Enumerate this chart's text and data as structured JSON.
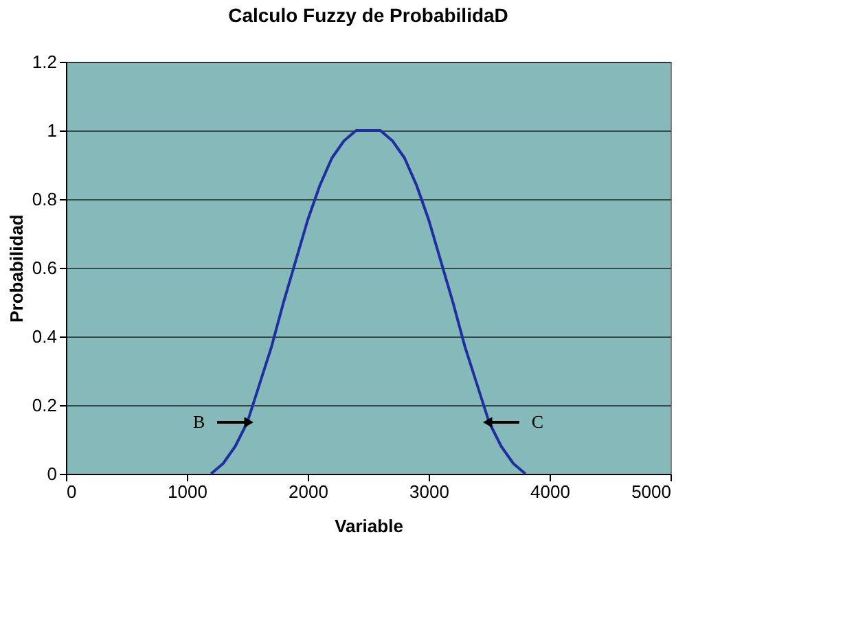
{
  "chart_data": {
    "type": "line",
    "title": "Calculo Fuzzy de ProbabilidaD",
    "xlabel": "Variable",
    "ylabel": "Probabilidad",
    "x": [
      1200,
      1300,
      1400,
      1500,
      1600,
      1700,
      1800,
      1900,
      2000,
      2100,
      2200,
      2300,
      2400,
      2500,
      2600,
      2700,
      2800,
      2900,
      3000,
      3100,
      3200,
      3300,
      3400,
      3500,
      3600,
      3700,
      3800
    ],
    "series": [
      {
        "color": "#1f2f9f",
        "values": [
          0,
          0.03,
          0.08,
          0.15,
          0.26,
          0.37,
          0.5,
          0.62,
          0.74,
          0.84,
          0.92,
          0.97,
          1,
          1,
          1,
          0.97,
          0.92,
          0.84,
          0.74,
          0.62,
          0.5,
          0.37,
          0.26,
          0.15,
          0.08,
          0.03,
          0
        ]
      }
    ],
    "xlim": [
      0,
      5000
    ],
    "xticks": [
      0,
      1000,
      2000,
      3000,
      4000,
      5000
    ],
    "ylim": [
      0,
      1.2
    ],
    "yticks": [
      0,
      0.2,
      0.4,
      0.6,
      0.8,
      1,
      1.2
    ],
    "grid": "y",
    "marker": "none",
    "line_style": "solid",
    "annotations": [
      {
        "text": "B",
        "x": 1500,
        "y": 0.15
      },
      {
        "text": "C",
        "x": 3500,
        "y": 0.15
      }
    ]
  }
}
